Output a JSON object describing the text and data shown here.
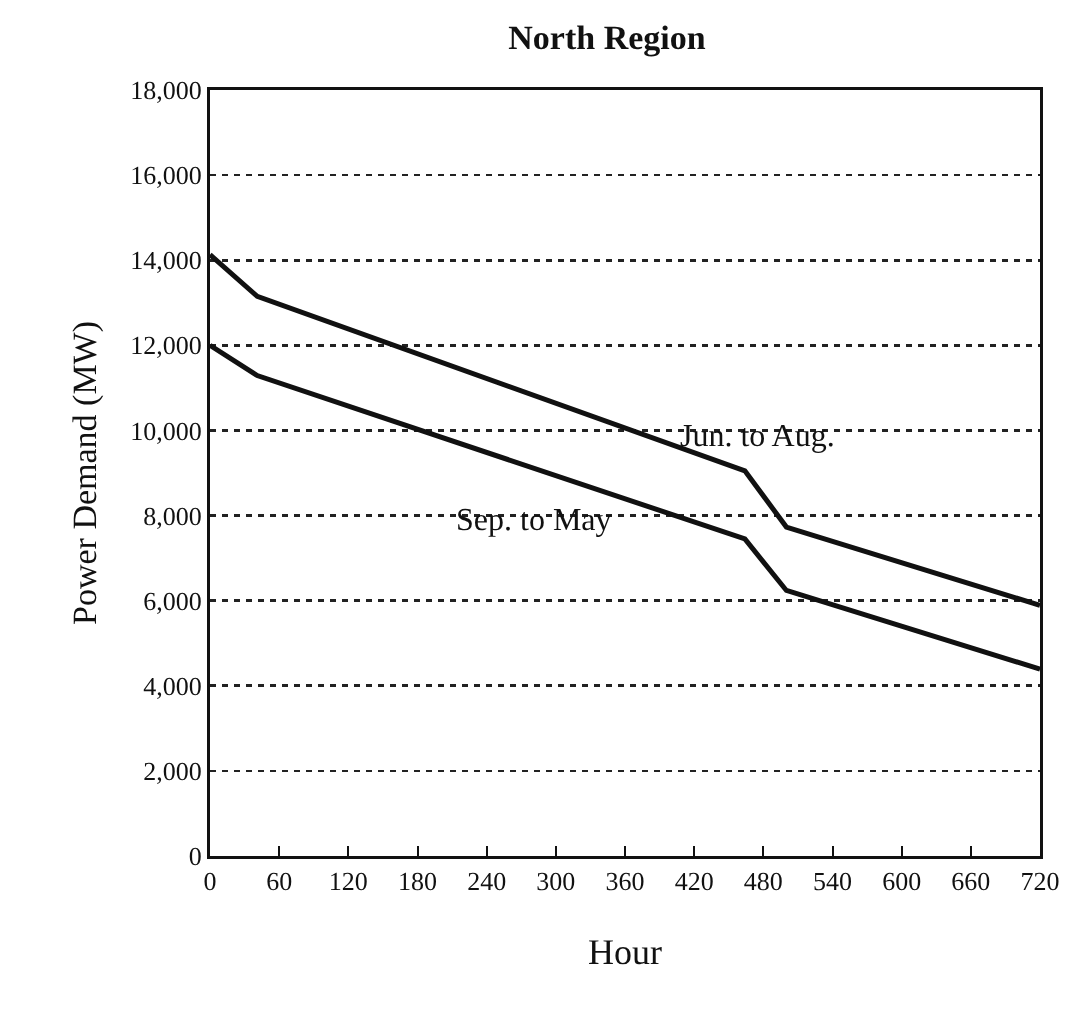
{
  "chart_data": {
    "type": "line",
    "title": "North Region",
    "xlabel": "Hour",
    "ylabel": "Power Demand (MW)",
    "x": [
      0,
      41,
      464,
      500,
      720
    ],
    "series": [
      {
        "name": "Jun. to Aug.",
        "color": "#111111",
        "values": [
          14130,
          13150,
          9050,
          7730,
          5890
        ]
      },
      {
        "name": "Sep. to May",
        "color": "#111111",
        "values": [
          12000,
          11290,
          7450,
          6240,
          4390
        ]
      }
    ],
    "xlim": [
      0,
      720
    ],
    "xticks": [
      0,
      60,
      120,
      180,
      240,
      300,
      360,
      420,
      480,
      540,
      600,
      660,
      720
    ],
    "ylim": [
      0,
      18000
    ],
    "yticks": [
      {
        "value": 0,
        "label": "0"
      },
      {
        "value": 2000,
        "label": "2,000"
      },
      {
        "value": 4000,
        "label": "4,000"
      },
      {
        "value": 6000,
        "label": "6,000"
      },
      {
        "value": 8000,
        "label": "8,000"
      },
      {
        "value": 10000,
        "label": "10,000"
      },
      {
        "value": 12000,
        "label": "12,000"
      },
      {
        "value": 14000,
        "label": "14,000"
      },
      {
        "value": 16000,
        "label": "16,000"
      },
      {
        "value": 18000,
        "label": "18,000"
      }
    ],
    "grid": "y",
    "legend": false,
    "marker": "none",
    "line_style": "solid"
  }
}
